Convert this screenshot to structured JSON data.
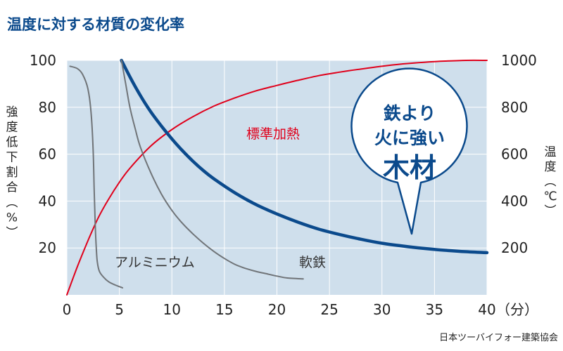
{
  "title": "温度に対する材質の変化率",
  "source": "日本ツーバイフォー建築協会",
  "chart_data": {
    "type": "line",
    "title": "温度に対する材質の変化率",
    "xlabel": "（分）",
    "ylabel_left": "強度低下割合（%）",
    "ylabel_right": "温度（℃）",
    "xlim": [
      0,
      40
    ],
    "ylim_left": [
      0,
      100
    ],
    "ylim_right": [
      0,
      1000
    ],
    "x_ticks": [
      "0",
      "5",
      "10",
      "15",
      "20",
      "25",
      "30",
      "35",
      "40"
    ],
    "y_ticks_left": [
      "20",
      "40",
      "60",
      "80",
      "100"
    ],
    "y_ticks_right": [
      "200",
      "400",
      "600",
      "800",
      "1000"
    ],
    "grid": true,
    "series": [
      {
        "name": "標準加熱",
        "axis": "right",
        "color": "#e0001b",
        "x": [
          0,
          1,
          2,
          3,
          4,
          5,
          6,
          8,
          10,
          12,
          14,
          16,
          18,
          20,
          22,
          24,
          26,
          28,
          30,
          32,
          34,
          36,
          38,
          40
        ],
        "y": [
          0,
          120,
          230,
          330,
          410,
          480,
          540,
          635,
          705,
          760,
          805,
          840,
          870,
          893,
          915,
          935,
          950,
          963,
          975,
          985,
          992,
          997,
          1000,
          1000
        ]
      },
      {
        "name": "木材",
        "axis": "left",
        "color": "#0b4a8c",
        "x": [
          5.2,
          6,
          7,
          8,
          9,
          10,
          11,
          12,
          13,
          14,
          16,
          18,
          20,
          22,
          24,
          26,
          28,
          30,
          32,
          34,
          36,
          38,
          40
        ],
        "y": [
          100,
          93,
          85,
          78,
          72,
          66.5,
          61.5,
          57,
          53,
          49.5,
          43.5,
          38.5,
          34.5,
          31,
          28,
          25.7,
          23.7,
          22,
          20.8,
          19.8,
          19,
          18.4,
          18
        ]
      },
      {
        "name": "軟鉄",
        "axis": "left",
        "color": "#707478",
        "x": [
          5.2,
          5.6,
          6,
          6.5,
          7,
          8,
          9,
          10,
          11,
          12,
          13,
          14,
          15,
          16,
          17,
          18,
          19,
          20,
          21,
          22.5
        ],
        "y": [
          100,
          90,
          80,
          71,
          63,
          52,
          43,
          36,
          30.5,
          26,
          22,
          18.5,
          15.5,
          13,
          11.3,
          10,
          9,
          8,
          7.2,
          6.8
        ]
      },
      {
        "name": "アルミニウム",
        "axis": "left",
        "color": "#707478",
        "x": [
          0.3,
          1,
          1.5,
          2,
          2.3,
          2.5,
          2.6,
          2.7,
          2.8,
          2.9,
          3.1,
          3.5,
          4,
          4.6,
          5.3
        ],
        "y": [
          97.5,
          96.5,
          94,
          88,
          78,
          62,
          45,
          30,
          20,
          14,
          10,
          7.5,
          5.5,
          4.2,
          3
        ]
      }
    ],
    "annotations": {
      "callout": [
        "鉄より",
        "火に強い",
        "木材"
      ]
    }
  }
}
